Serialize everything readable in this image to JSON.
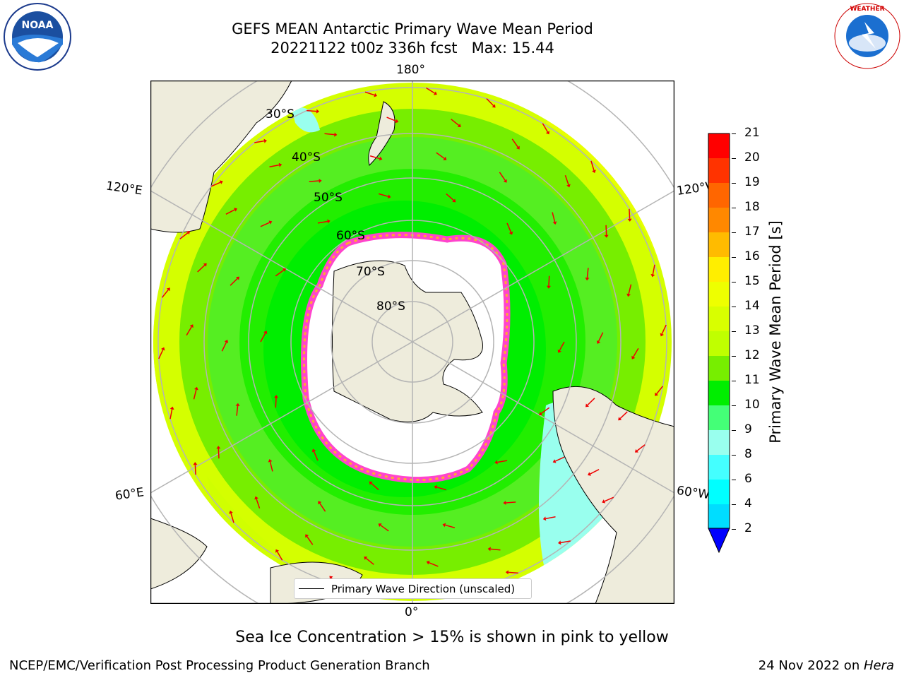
{
  "title": {
    "line1": "GEFS MEAN Antarctic Primary Wave Mean Period",
    "line2": "20221122 t00z 336h fcst   Max: 15.44"
  },
  "map": {
    "projection": "south-polar-stereographic",
    "longitude_labels": {
      "top": "180°",
      "left_upper": "120°E",
      "right_upper": "120°W",
      "left_lower": "60°E",
      "right_lower": "60°W",
      "bottom": "0°"
    },
    "latitude_labels": [
      "30°S",
      "40°S",
      "50°S",
      "60°S",
      "70°S",
      "80°S"
    ],
    "legend_label": "Primary Wave Direction (unscaled)",
    "arrow_color": "#ee0000",
    "land_color": "#eeecdc"
  },
  "colorbar": {
    "label": "Primary Wave Mean Period [s]",
    "ticks": [
      "21",
      "20",
      "19",
      "18",
      "17",
      "16",
      "15",
      "14",
      "13",
      "12",
      "11",
      "10",
      "9",
      "8",
      "6",
      "4",
      "2"
    ],
    "colors": [
      "#ff0000",
      "#ff3300",
      "#ff6600",
      "#ff8800",
      "#ffbb00",
      "#ffee00",
      "#eeff00",
      "#d8ff00",
      "#c0ff00",
      "#77ee00",
      "#00ee00",
      "#44ff77",
      "#99ffee",
      "#44ffff",
      "#00ffff",
      "#00ddff",
      "#0077ff",
      "#0000ff"
    ]
  },
  "note": "Sea Ice Concentration > 15% is shown in pink to yellow",
  "footer": {
    "left": "NCEP/EMC/Verification Post Processing Product Generation Branch",
    "right_prefix": "24 Nov 2022 on ",
    "right_host": "Hera"
  },
  "logos": {
    "left": "NOAA",
    "right": "NATIONAL WEATHER SERVICE"
  }
}
